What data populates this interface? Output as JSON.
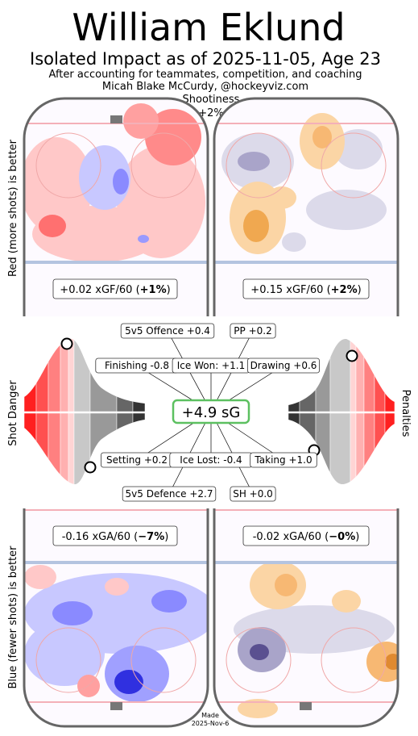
{
  "header": {
    "title": "William Eklund",
    "subtitle": "Isolated Impact as of 2025-11-05, Age 23",
    "note": "After accounting for teammates, competition, and coaching",
    "credit": "Micah Blake McCurdy, @hockeyviz.com",
    "shootiness": "Shootiness",
    "shootiness_value": "+2%"
  },
  "side_labels": {
    "top": "Red (more shots) is better",
    "bottom": "Blue (fewer shots) is better",
    "left": "Shot Danger",
    "right": "Penalties"
  },
  "rinks": [
    {
      "text": "+0.02 xGF/60 (",
      "bold": "+1%",
      "close": ")"
    },
    {
      "text": "+0.15 xGF/60 (",
      "bold": "+2%",
      "close": ")"
    },
    {
      "text": "-0.16 xGA/60 (",
      "bold": "−7%",
      "close": ")"
    },
    {
      "text": "-0.02 xGA/60 (",
      "bold": "−0%",
      "close": ")"
    }
  ],
  "center": {
    "total": "+4.9 sG",
    "labels": [
      "5v5 Offence +0.4",
      "PP +0.2",
      "Finishing -0.8",
      "Ice Won: +1.1",
      "Drawing +0.6",
      "Setting +0.2",
      "Ice Lost: -0.4",
      "Taking +1.0",
      "5v5 Defence +2.7",
      "SH +0.0"
    ]
  },
  "footer": {
    "made": "Made",
    "date": "2025-Nov-6"
  }
}
